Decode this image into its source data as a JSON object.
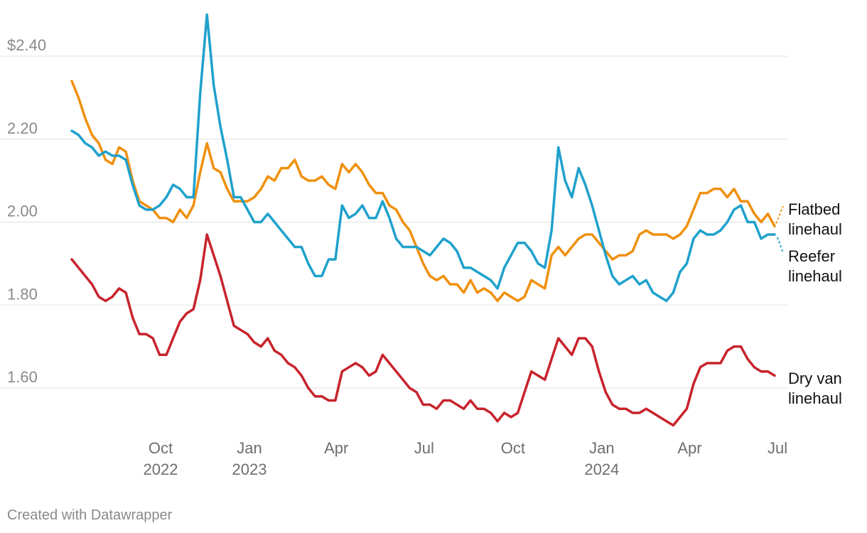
{
  "chart_data": {
    "type": "line",
    "x_start": "2022-07-01",
    "x_step_days": 7,
    "y_ticks": [
      {
        "value": 1.6,
        "label": "1.60"
      },
      {
        "value": 1.8,
        "label": "1.80"
      },
      {
        "value": 2.0,
        "label": "2.00"
      },
      {
        "value": 2.2,
        "label": "2.20"
      },
      {
        "value": 2.4,
        "label": "$2.40"
      }
    ],
    "ylim": [
      1.5,
      2.52
    ],
    "x_ticks": [
      {
        "date": "2022-10-01",
        "label": "Oct",
        "year": "2022"
      },
      {
        "date": "2023-01-01",
        "label": "Jan",
        "year": "2023"
      },
      {
        "date": "2023-04-01",
        "label": "Apr",
        "year": ""
      },
      {
        "date": "2023-07-01",
        "label": "Jul",
        "year": ""
      },
      {
        "date": "2023-10-01",
        "label": "Oct",
        "year": ""
      },
      {
        "date": "2024-01-01",
        "label": "Jan",
        "year": "2024"
      },
      {
        "date": "2024-04-01",
        "label": "Apr",
        "year": ""
      },
      {
        "date": "2024-07-01",
        "label": "Jul",
        "year": ""
      }
    ],
    "series": [
      {
        "name": "Flatbed linehaul",
        "label_lines": [
          "Flatbed",
          "linehaul"
        ],
        "color": "#f0900f",
        "values": [
          2.34,
          2.3,
          2.25,
          2.21,
          2.19,
          2.15,
          2.14,
          2.18,
          2.17,
          2.1,
          2.05,
          2.04,
          2.03,
          2.01,
          2.01,
          2.0,
          2.03,
          2.01,
          2.04,
          2.12,
          2.19,
          2.13,
          2.12,
          2.08,
          2.05,
          2.05,
          2.05,
          2.06,
          2.08,
          2.11,
          2.1,
          2.13,
          2.13,
          2.15,
          2.11,
          2.1,
          2.1,
          2.11,
          2.09,
          2.08,
          2.14,
          2.12,
          2.14,
          2.12,
          2.09,
          2.07,
          2.07,
          2.04,
          2.03,
          2.0,
          1.98,
          1.94,
          1.9,
          1.87,
          1.86,
          1.87,
          1.85,
          1.85,
          1.83,
          1.86,
          1.83,
          1.84,
          1.83,
          1.81,
          1.83,
          1.82,
          1.81,
          1.82,
          1.86,
          1.85,
          1.84,
          1.92,
          1.94,
          1.92,
          1.94,
          1.96,
          1.97,
          1.97,
          1.95,
          1.93,
          1.91,
          1.92,
          1.92,
          1.93,
          1.97,
          1.98,
          1.97,
          1.97,
          1.97,
          1.96,
          1.97,
          1.99,
          2.03,
          2.07,
          2.07,
          2.08,
          2.08,
          2.06,
          2.08,
          2.05,
          2.05,
          2.02,
          2.0,
          2.02,
          1.99
        ]
      },
      {
        "name": "Reefer linehaul",
        "label_lines": [
          "Reefer",
          "linehaul"
        ],
        "color": "#1fa1cc",
        "values": [
          2.22,
          2.21,
          2.19,
          2.18,
          2.16,
          2.17,
          2.16,
          2.16,
          2.15,
          2.09,
          2.04,
          2.03,
          2.03,
          2.04,
          2.06,
          2.09,
          2.08,
          2.06,
          2.06,
          2.31,
          2.5,
          2.33,
          2.23,
          2.15,
          2.06,
          2.06,
          2.03,
          2.0,
          2.0,
          2.02,
          2.0,
          1.98,
          1.96,
          1.94,
          1.94,
          1.9,
          1.87,
          1.87,
          1.91,
          1.91,
          2.04,
          2.01,
          2.02,
          2.04,
          2.01,
          2.01,
          2.05,
          2.01,
          1.96,
          1.94,
          1.94,
          1.94,
          1.93,
          1.92,
          1.94,
          1.96,
          1.95,
          1.93,
          1.89,
          1.89,
          1.88,
          1.87,
          1.86,
          1.84,
          1.89,
          1.92,
          1.95,
          1.95,
          1.93,
          1.9,
          1.89,
          1.98,
          2.18,
          2.1,
          2.06,
          2.13,
          2.09,
          2.04,
          1.98,
          1.92,
          1.87,
          1.85,
          1.86,
          1.87,
          1.85,
          1.86,
          1.83,
          1.82,
          1.81,
          1.83,
          1.88,
          1.9,
          1.96,
          1.98,
          1.97,
          1.97,
          1.98,
          2.0,
          2.03,
          2.04,
          2.0,
          2.0,
          1.96,
          1.97,
          1.97
        ]
      },
      {
        "name": "Dry van linehaul",
        "label_lines": [
          "Dry van",
          "linehaul"
        ],
        "color": "#c8232c",
        "values": [
          1.91,
          1.89,
          1.87,
          1.85,
          1.82,
          1.81,
          1.82,
          1.84,
          1.83,
          1.77,
          1.73,
          1.73,
          1.72,
          1.68,
          1.68,
          1.72,
          1.76,
          1.78,
          1.79,
          1.86,
          1.97,
          1.92,
          1.87,
          1.81,
          1.75,
          1.74,
          1.73,
          1.71,
          1.7,
          1.72,
          1.69,
          1.68,
          1.66,
          1.65,
          1.63,
          1.6,
          1.58,
          1.58,
          1.57,
          1.57,
          1.64,
          1.65,
          1.66,
          1.65,
          1.63,
          1.64,
          1.68,
          1.66,
          1.64,
          1.62,
          1.6,
          1.59,
          1.56,
          1.56,
          1.55,
          1.57,
          1.57,
          1.56,
          1.55,
          1.57,
          1.55,
          1.55,
          1.54,
          1.52,
          1.54,
          1.53,
          1.54,
          1.59,
          1.64,
          1.63,
          1.62,
          1.67,
          1.72,
          1.7,
          1.68,
          1.72,
          1.72,
          1.7,
          1.64,
          1.59,
          1.56,
          1.55,
          1.55,
          1.54,
          1.54,
          1.55,
          1.54,
          1.53,
          1.52,
          1.51,
          1.53,
          1.55,
          1.61,
          1.65,
          1.66,
          1.66,
          1.66,
          1.69,
          1.7,
          1.7,
          1.67,
          1.65,
          1.64,
          1.64,
          1.63
        ]
      }
    ]
  },
  "footer": {
    "credit": "Created with Datawrapper"
  }
}
